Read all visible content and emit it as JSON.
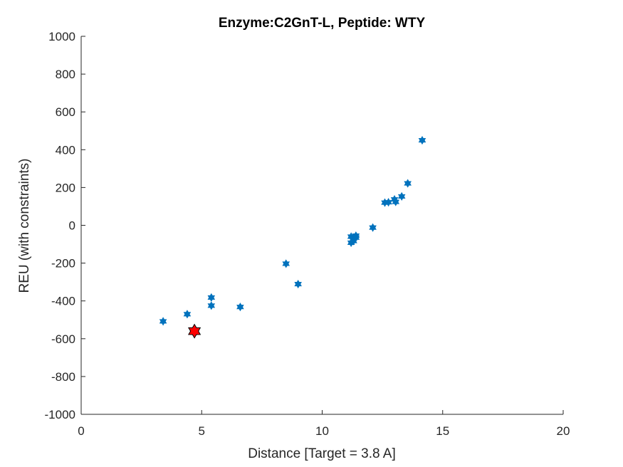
{
  "chart_data": {
    "type": "scatter",
    "title": "Enzyme:C2GnT-L, Peptide: WTY",
    "xlabel": "Distance [Target = 3.8 A]",
    "ylabel": "REU (with constraints)",
    "xlim": [
      0,
      20
    ],
    "ylim": [
      -1000,
      1000
    ],
    "xticks": [
      "0",
      "5",
      "10",
      "15",
      "20"
    ],
    "yticks": [
      "-1000",
      "-800",
      "-600",
      "-400",
      "-200",
      "0",
      "200",
      "400",
      "600",
      "800",
      "1000"
    ],
    "grid": false,
    "series": [
      {
        "marker": "hexagram",
        "color": "#0072BD",
        "points": [
          [
            3.4,
            -508
          ],
          [
            4.4,
            -470
          ],
          [
            5.4,
            -382
          ],
          [
            5.4,
            -425
          ],
          [
            6.6,
            -432
          ],
          [
            8.5,
            -203
          ],
          [
            9.0,
            -311
          ],
          [
            11.2,
            -60
          ],
          [
            11.3,
            -70
          ],
          [
            11.4,
            -55
          ],
          [
            11.2,
            -92
          ],
          [
            11.3,
            -83
          ],
          [
            11.4,
            -65
          ],
          [
            12.1,
            -12
          ],
          [
            12.6,
            120
          ],
          [
            12.75,
            122
          ],
          [
            13.0,
            137
          ],
          [
            13.05,
            124
          ],
          [
            13.3,
            153
          ],
          [
            13.55,
            222
          ],
          [
            14.15,
            450
          ]
        ]
      },
      {
        "marker": "hexagram",
        "color": "#FF0000",
        "edge": "#000000",
        "points": [
          [
            4.7,
            -560
          ]
        ]
      }
    ]
  }
}
